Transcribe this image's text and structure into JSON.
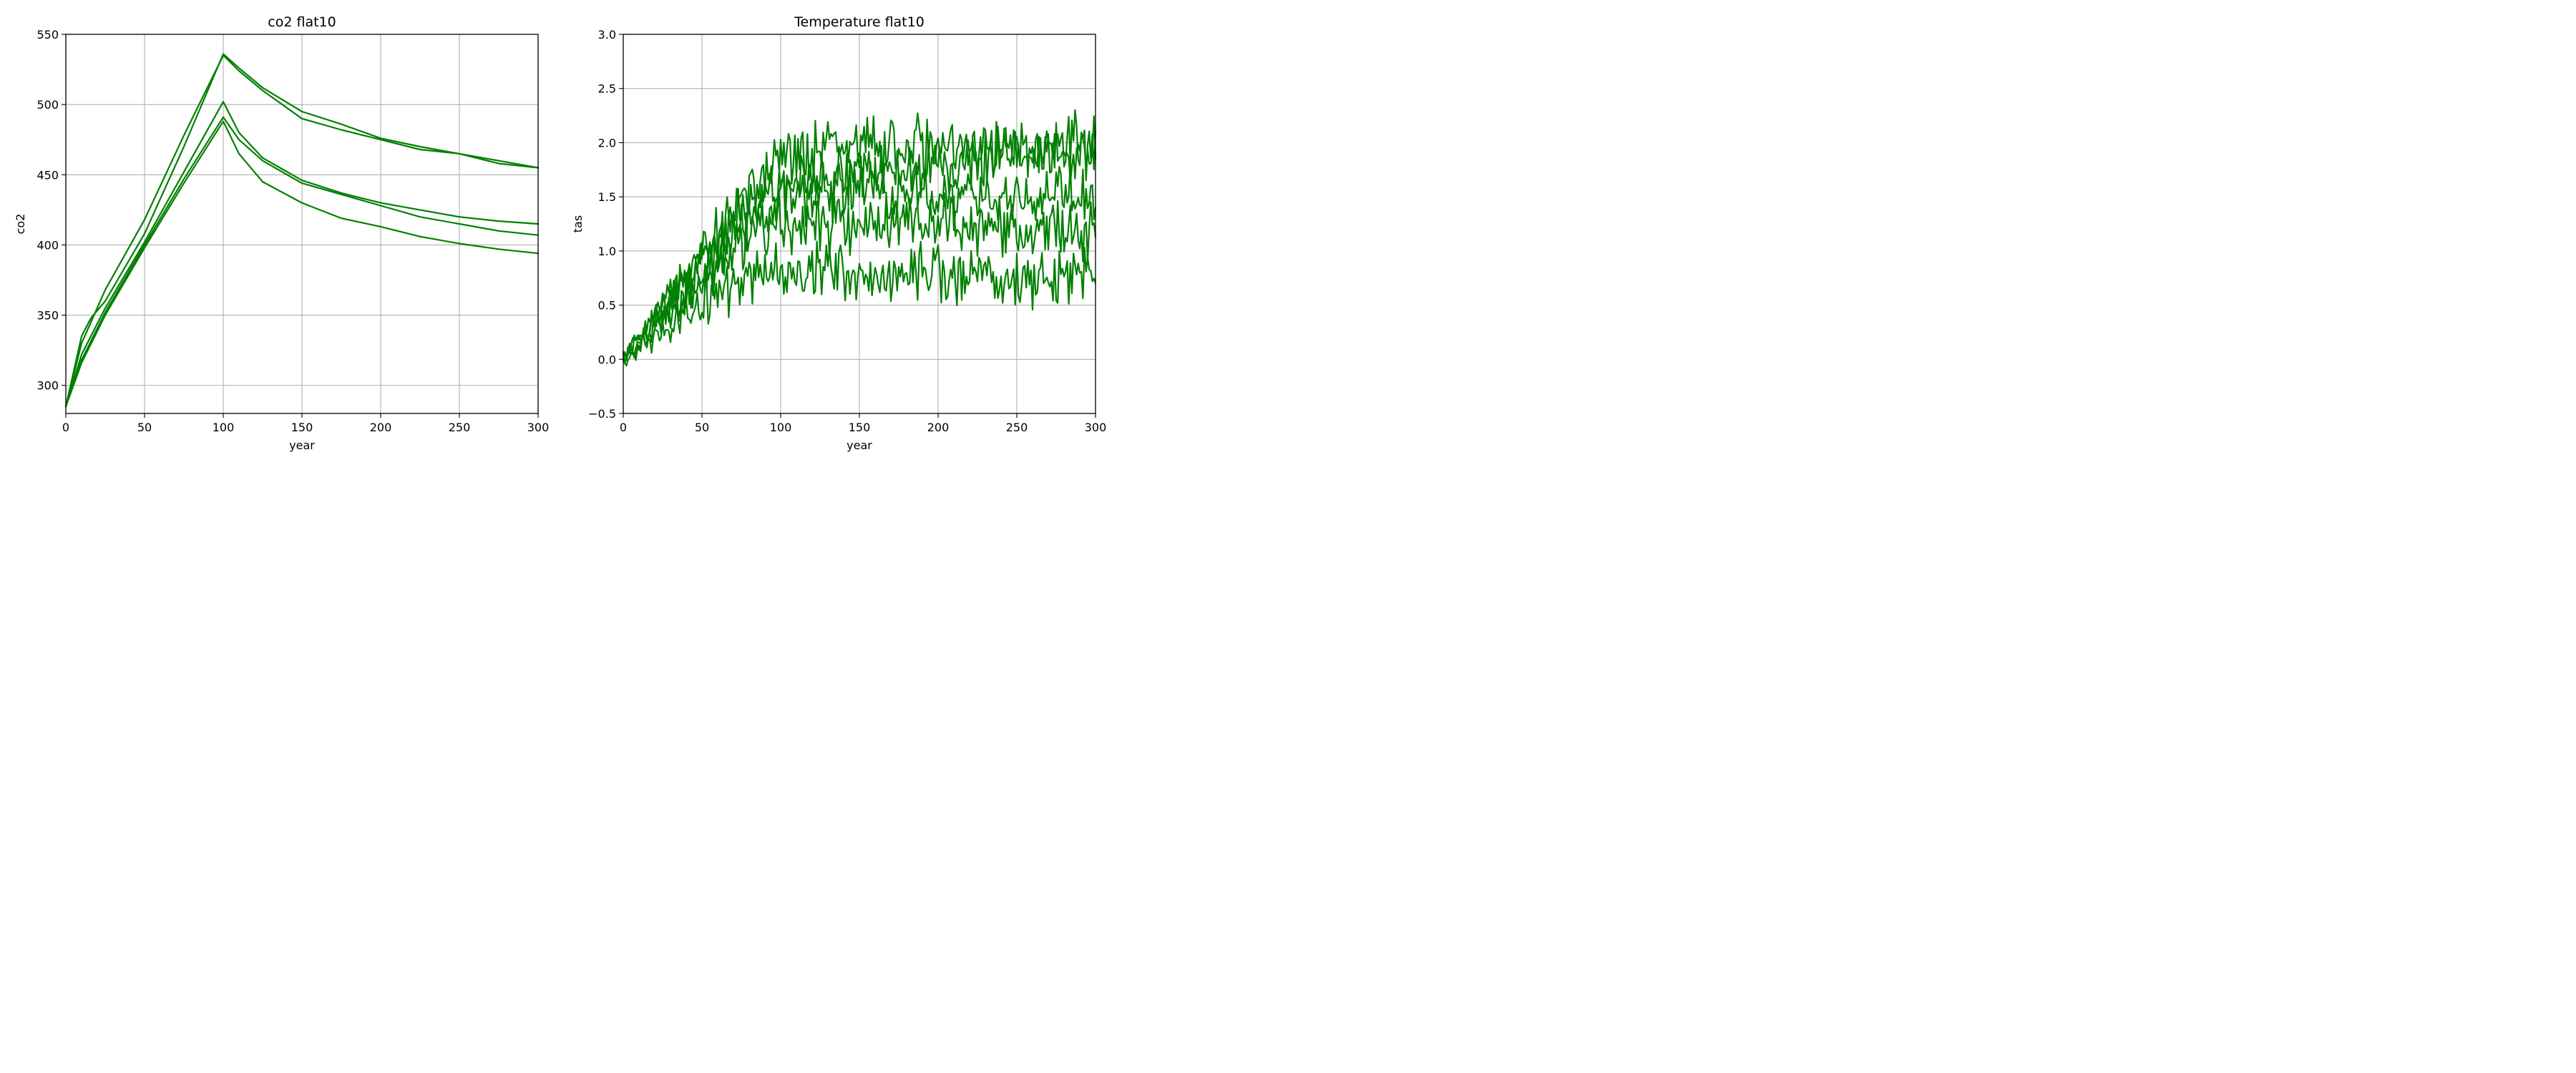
{
  "colors": {
    "series": "#008000",
    "grid": "#b0b0b0",
    "axis": "#000000"
  },
  "chart_data": [
    {
      "type": "line",
      "title": "co2 flat10",
      "xlabel": "year",
      "ylabel": "co2",
      "xlim": [
        0,
        300
      ],
      "ylim": [
        280,
        550
      ],
      "xticks": [
        0,
        50,
        100,
        150,
        200,
        250,
        300
      ],
      "yticks": [
        300,
        350,
        400,
        450,
        500,
        550
      ],
      "grid": true,
      "noise": false,
      "series": [
        {
          "x": [
            0,
            10,
            16,
            25,
            50,
            75,
            100,
            110,
            125,
            150,
            175,
            200,
            225,
            250,
            275,
            300
          ],
          "y": [
            285,
            335,
            348,
            360,
            408,
            470,
            536,
            526,
            512,
            495,
            486,
            476,
            470,
            465,
            458,
            455
          ]
        },
        {
          "x": [
            0,
            10,
            25,
            50,
            75,
            100,
            110,
            125,
            150,
            175,
            200,
            225,
            250,
            275,
            300
          ],
          "y": [
            285,
            330,
            368,
            418,
            478,
            535,
            524,
            510,
            490,
            482,
            475,
            468,
            465,
            460,
            455
          ]
        },
        {
          "x": [
            0,
            10,
            25,
            50,
            75,
            100,
            110,
            125,
            150,
            175,
            200,
            225,
            250,
            275,
            300
          ],
          "y": [
            285,
            322,
            355,
            402,
            452,
            502,
            480,
            462,
            446,
            437,
            430,
            425,
            420,
            417,
            415
          ]
        },
        {
          "x": [
            0,
            10,
            25,
            50,
            75,
            100,
            110,
            125,
            150,
            175,
            200,
            225,
            250,
            275,
            300
          ],
          "y": [
            285,
            318,
            352,
            400,
            447,
            491,
            475,
            460,
            444,
            436,
            428,
            420,
            415,
            410,
            407
          ]
        },
        {
          "x": [
            0,
            10,
            25,
            50,
            75,
            100,
            110,
            125,
            150,
            175,
            200,
            225,
            250,
            275,
            300
          ],
          "y": [
            285,
            316,
            350,
            398,
            444,
            488,
            465,
            445,
            430,
            419,
            413,
            406,
            401,
            397,
            394
          ]
        }
      ]
    },
    {
      "type": "line",
      "title": "Temperature flat10",
      "xlabel": "year",
      "ylabel": "tas",
      "xlim": [
        0,
        300
      ],
      "ylim": [
        -0.5,
        3.0
      ],
      "xticks": [
        0,
        50,
        100,
        150,
        200,
        250,
        300
      ],
      "yticks": [
        -0.5,
        0.0,
        0.5,
        1.0,
        1.5,
        2.0,
        2.5,
        3.0
      ],
      "grid": true,
      "noise": true,
      "series": [
        {
          "x": [
            0,
            25,
            50,
            75,
            100,
            125,
            150,
            200,
            250,
            300
          ],
          "y": [
            0.0,
            0.55,
            0.95,
            1.45,
            1.85,
            1.95,
            1.97,
            1.95,
            1.97,
            2.0
          ]
        },
        {
          "x": [
            0,
            25,
            50,
            75,
            100,
            125,
            150,
            200,
            250,
            300
          ],
          "y": [
            0.0,
            0.45,
            0.9,
            1.3,
            1.6,
            1.65,
            1.7,
            1.8,
            1.9,
            1.9
          ]
        },
        {
          "x": [
            0,
            25,
            50,
            75,
            100,
            125,
            150,
            200,
            250,
            300
          ],
          "y": [
            0.0,
            0.4,
            0.8,
            1.2,
            1.5,
            1.55,
            1.55,
            1.5,
            1.5,
            1.5
          ]
        },
        {
          "x": [
            0,
            25,
            50,
            75,
            100,
            125,
            150,
            200,
            250,
            300
          ],
          "y": [
            0.0,
            0.35,
            0.7,
            1.05,
            1.25,
            1.25,
            1.25,
            1.25,
            1.2,
            1.2
          ]
        },
        {
          "x": [
            0,
            25,
            50,
            75,
            100,
            125,
            150,
            200,
            250,
            300
          ],
          "y": [
            0.0,
            0.25,
            0.5,
            0.7,
            0.82,
            0.8,
            0.78,
            0.77,
            0.75,
            0.75
          ]
        }
      ]
    }
  ]
}
